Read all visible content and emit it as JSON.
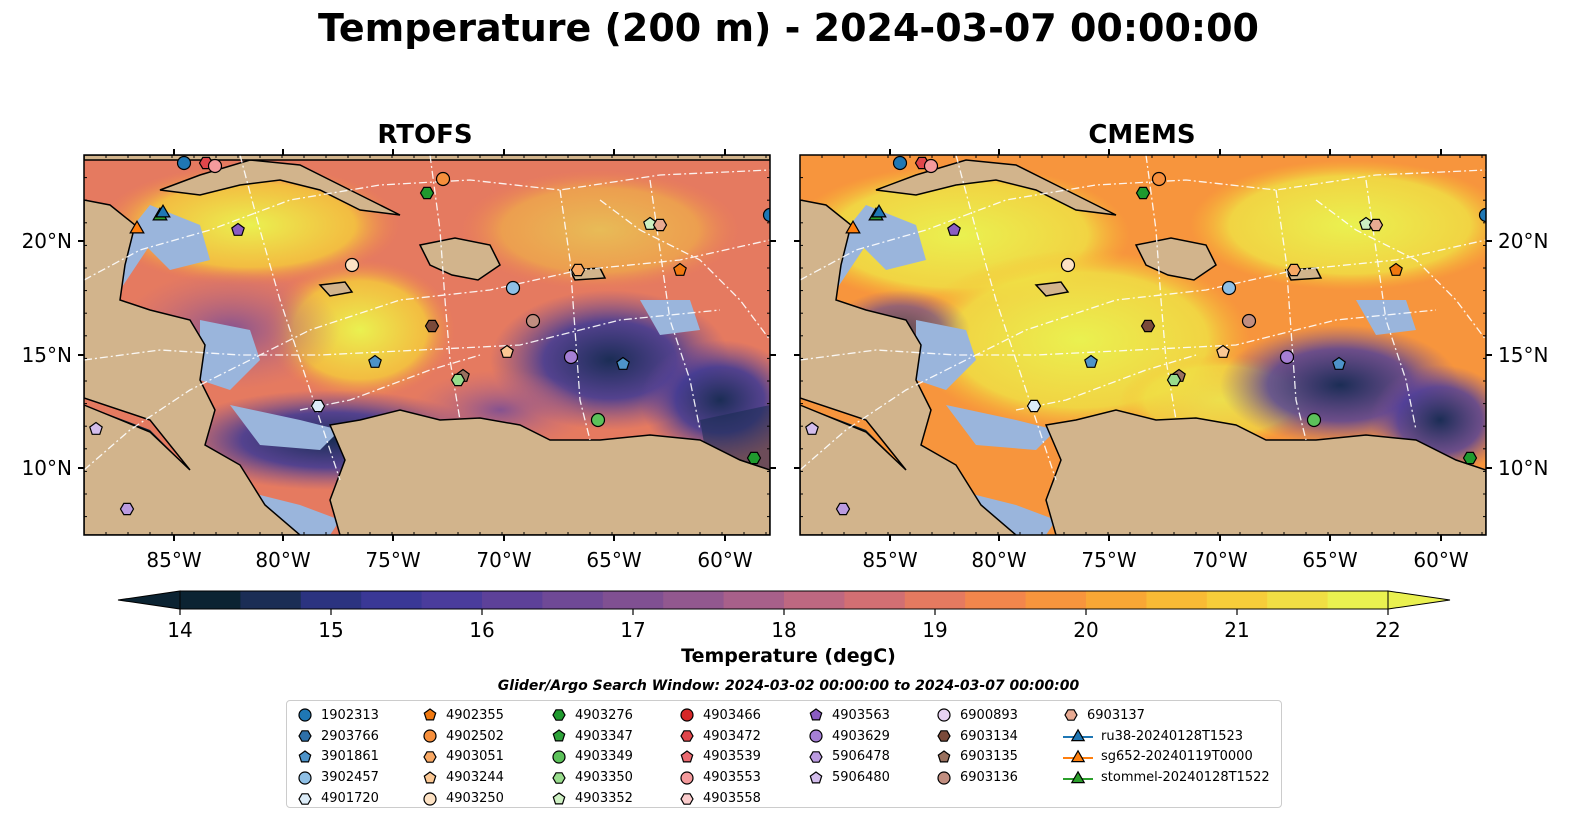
{
  "title": "Temperature (200 m) - 2024-03-07 00:00:00",
  "panels": [
    {
      "title": "RTOFS"
    },
    {
      "title": "CMEMS"
    }
  ],
  "axes": {
    "x_ticks": [
      "85°W",
      "80°W",
      "75°W",
      "70°W",
      "65°W",
      "60°W"
    ],
    "y_ticks": [
      "20°N",
      "15°N",
      "10°N"
    ],
    "lon_range": [
      -89.6,
      -58.3
    ],
    "lat_range": [
      7.0,
      23.8
    ]
  },
  "colorbar": {
    "label": "Temperature (degC)",
    "ticks": [
      "14",
      "15",
      "16",
      "17",
      "18",
      "19",
      "20",
      "21",
      "22"
    ],
    "range": [
      14,
      22
    ],
    "extend": "both",
    "colors": [
      "#0b2332",
      "#1b2d55",
      "#2b3380",
      "#3a3896",
      "#4a3c9c",
      "#5d4199",
      "#6f4996",
      "#805092",
      "#92588f",
      "#a8608a",
      "#be6881",
      "#d26f73",
      "#e57a60",
      "#f2864c",
      "#f7953d",
      "#f8a735",
      "#f8bb35",
      "#f6cd3a",
      "#f0df44",
      "#eaf150"
    ]
  },
  "map_colors": {
    "land": "#d2b48c",
    "shelf": "#9ab5dc",
    "ocean_deep": "#0b2332",
    "coast": "#000000",
    "transect": "#ffffff"
  },
  "search_window": "Glider/Argo Search Window: 2024-03-02 00:00:00 to 2024-03-07 00:00:00",
  "legend": [
    [
      {
        "label": "1902313",
        "marker": "circle",
        "color": "#1f77b4"
      },
      {
        "label": "2903766",
        "marker": "hexagon",
        "color": "#2e6fa8"
      },
      {
        "label": "3901861",
        "marker": "pentagon",
        "color": "#4d93c9"
      },
      {
        "label": "3902457",
        "marker": "circle",
        "color": "#8fc0e6"
      },
      {
        "label": "4901720",
        "marker": "hexagon",
        "color": "#dcecf8"
      }
    ],
    [
      {
        "label": "4902355",
        "marker": "pentagon",
        "color": "#f0780f"
      },
      {
        "label": "4902502",
        "marker": "circle",
        "color": "#f68f3c"
      },
      {
        "label": "4903051",
        "marker": "hexagon",
        "color": "#f8a864"
      },
      {
        "label": "4903244",
        "marker": "pentagon",
        "color": "#fbc894"
      },
      {
        "label": "4903250",
        "marker": "circle",
        "color": "#fde2c4"
      }
    ],
    [
      {
        "label": "4903276",
        "marker": "hexagon",
        "color": "#1f9a2e"
      },
      {
        "label": "4903347",
        "marker": "pentagon",
        "color": "#2ea33a"
      },
      {
        "label": "4903349",
        "marker": "circle",
        "color": "#5cc15a"
      },
      {
        "label": "4903350",
        "marker": "hexagon",
        "color": "#98dc8c"
      },
      {
        "label": "4903352",
        "marker": "pentagon",
        "color": "#cdf0c2"
      }
    ],
    [
      {
        "label": "4903466",
        "marker": "circle",
        "color": "#d62728"
      },
      {
        "label": "4903472",
        "marker": "hexagon",
        "color": "#e0464b"
      },
      {
        "label": "4903539",
        "marker": "pentagon",
        "color": "#ea6a70"
      },
      {
        "label": "4903553",
        "marker": "circle",
        "color": "#f49a9c"
      },
      {
        "label": "4903558",
        "marker": "hexagon",
        "color": "#fbcccc"
      }
    ],
    [
      {
        "label": "4903563",
        "marker": "pentagon",
        "color": "#8a5cc2"
      },
      {
        "label": "4903629",
        "marker": "circle",
        "color": "#a57fd4"
      },
      {
        "label": "5906478",
        "marker": "hexagon",
        "color": "#bb9be0"
      },
      {
        "label": "5906480",
        "marker": "pentagon",
        "color": "#d3bdec"
      }
    ],
    [
      {
        "label": "6900893",
        "marker": "circle",
        "color": "#e8d3f2"
      },
      {
        "label": "6903134",
        "marker": "hexagon",
        "color": "#7a4a3a"
      },
      {
        "label": "6903135",
        "marker": "pentagon",
        "color": "#99705e"
      },
      {
        "label": "6903136",
        "marker": "circle",
        "color": "#c18e80"
      }
    ],
    [
      {
        "label": "6903137",
        "marker": "hexagon",
        "color": "#e8aa92"
      },
      {
        "label": "ru38-20240128T1523",
        "marker": "triangle-line",
        "color": "#1f77b4"
      },
      {
        "label": "sg652-20240119T0000",
        "marker": "triangle-line",
        "color": "#ff7f0e"
      },
      {
        "label": "stommel-20240128T1522",
        "marker": "triangle-line",
        "color": "#2ca02c"
      }
    ]
  ]
}
